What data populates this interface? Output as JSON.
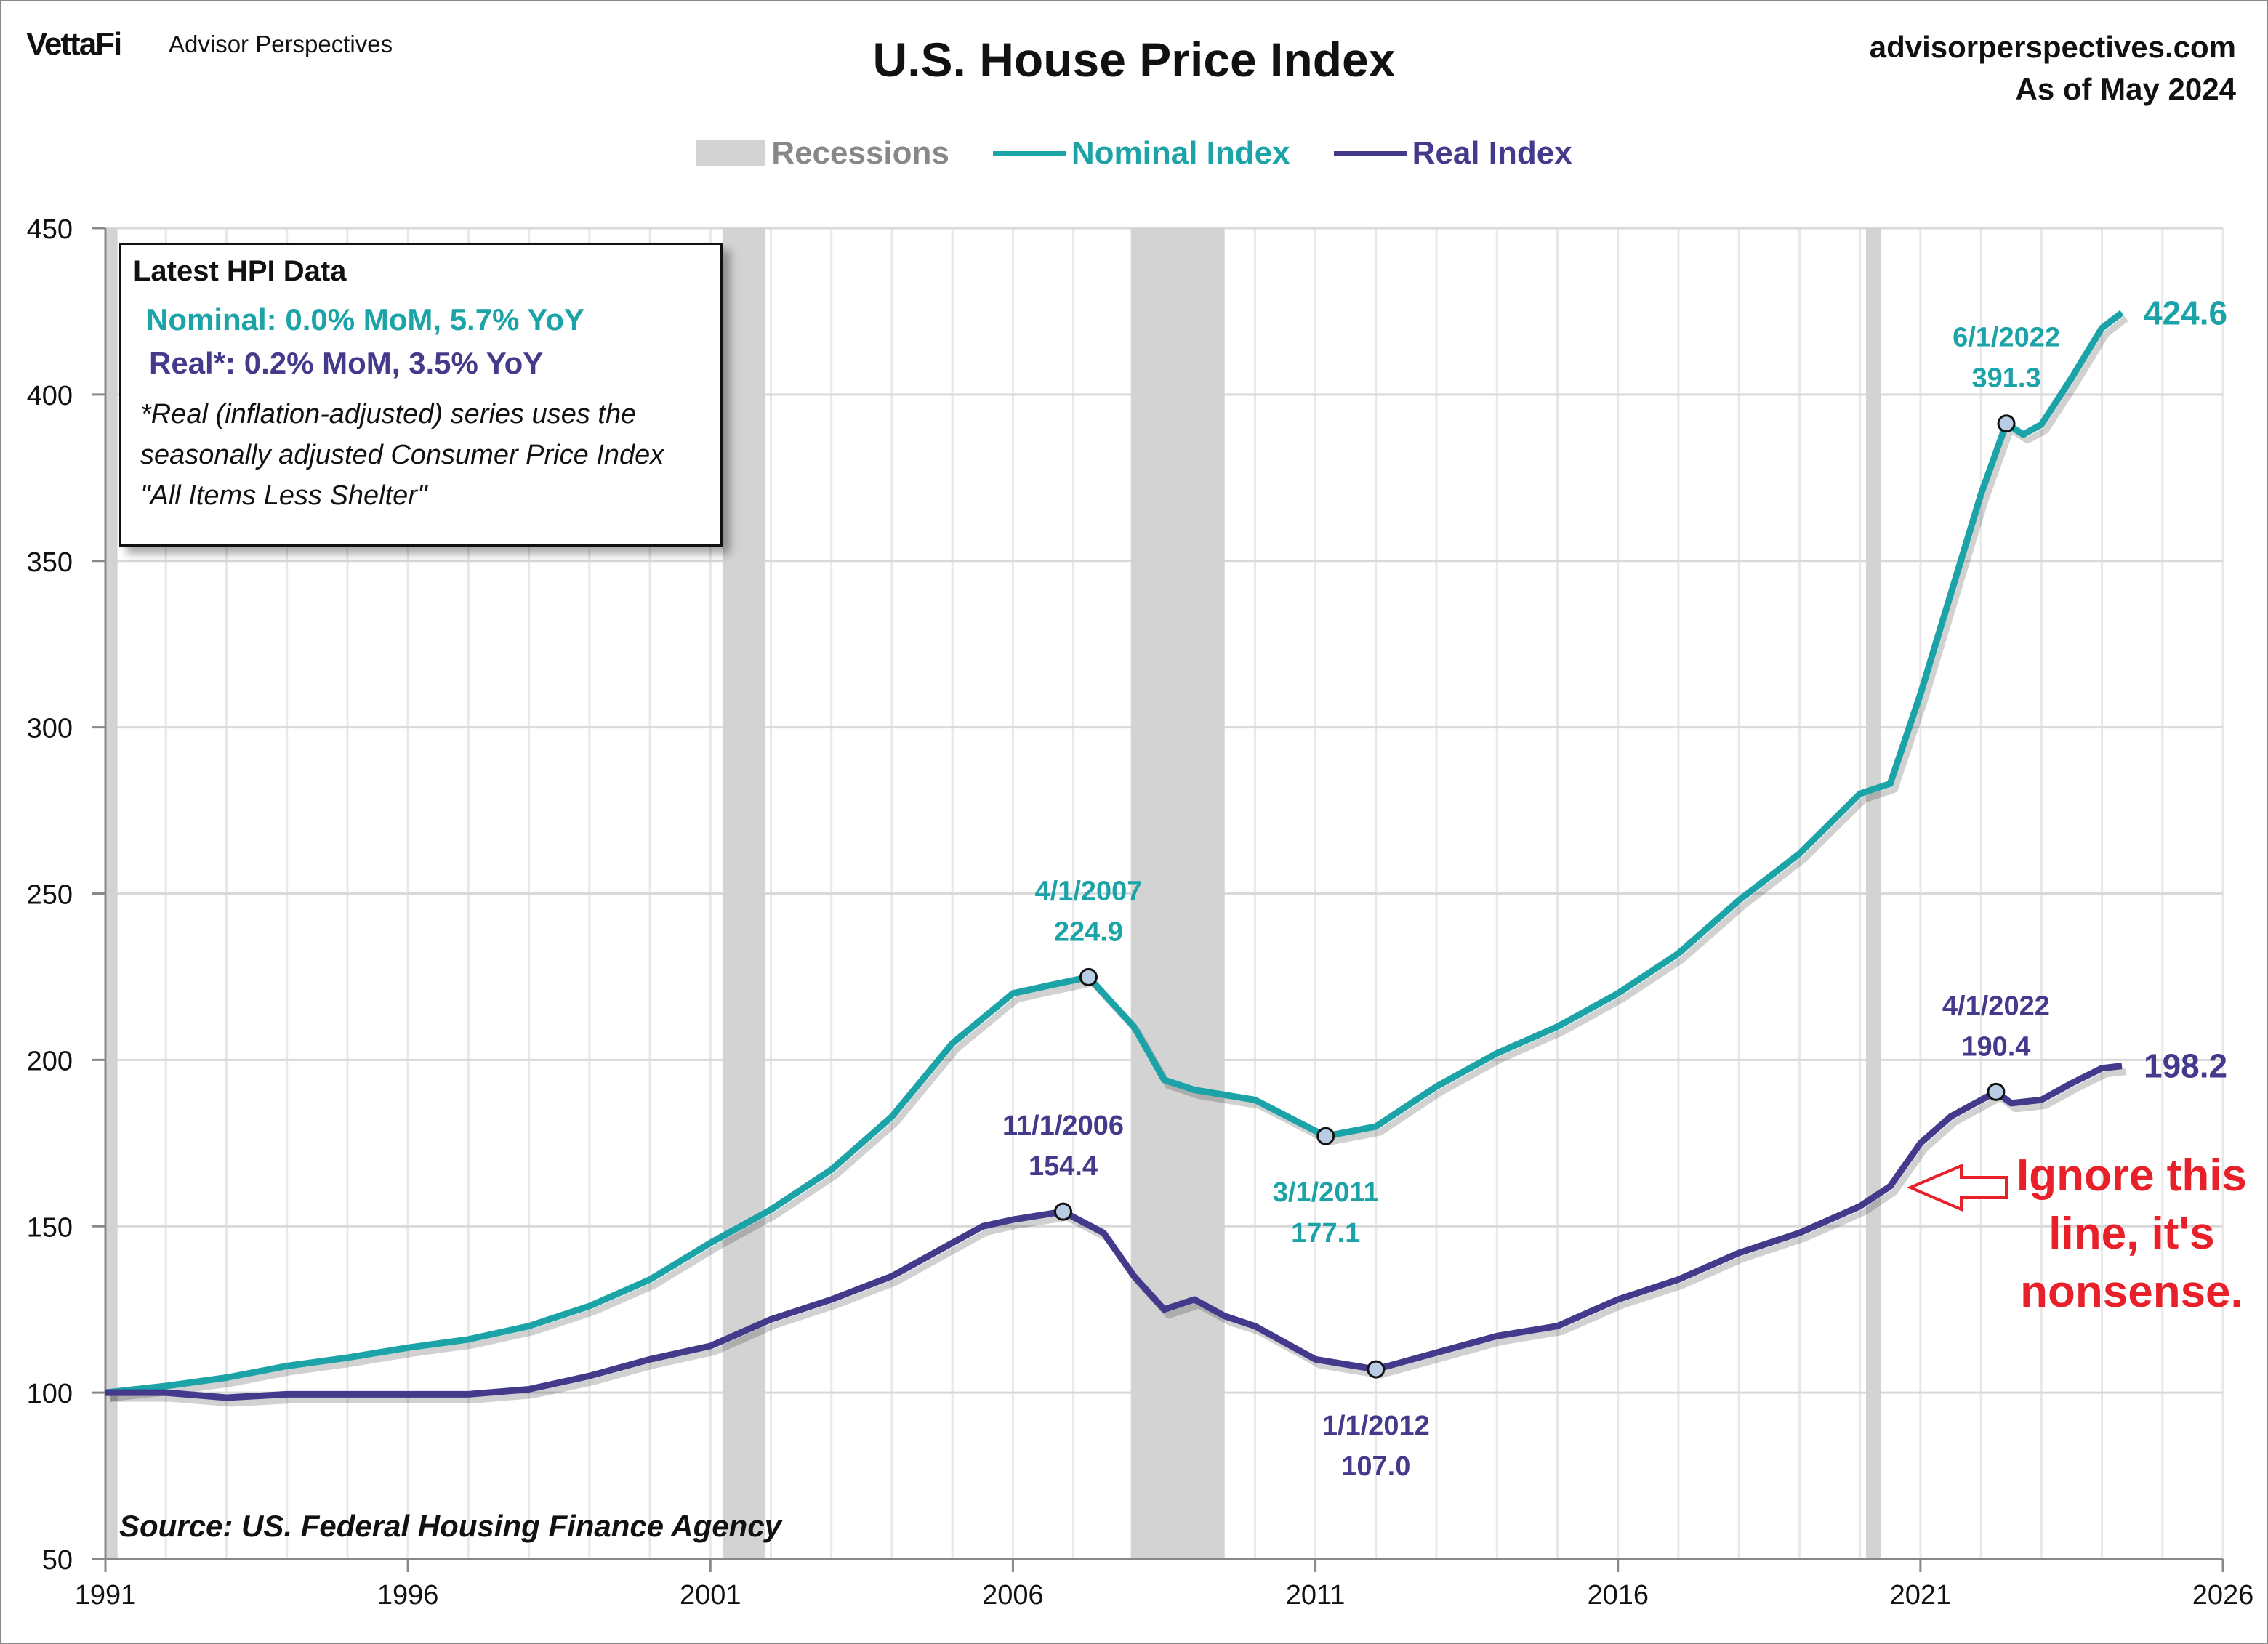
{
  "header": {
    "logo": "VettaFi",
    "brand": "Advisor Perspectives",
    "site": "advisorperspectives.com",
    "as_of": "As of May 2024"
  },
  "infobox": {
    "title": "Latest HPI Data",
    "nominal": "Nominal:  0.0% MoM, 5.7% YoY",
    "real": "Real*:  0.2% MoM, 3.5% YoY",
    "note": "*Real (inflation-adjusted) series uses the seasonally adjusted Consumer Price Index \"All Items Less Shelter\""
  },
  "source": "Source: US. Federal Housing Finance Agency",
  "annotation": {
    "text_line1": "Ignore this",
    "text_line2": "line, it's",
    "text_line3": "nonsense.",
    "color": "#e8202a"
  },
  "chart_data": {
    "type": "line",
    "title": "U.S. House Price Index",
    "xlabel": "",
    "ylabel": "",
    "xlim": [
      1991,
      2026
    ],
    "ylim": [
      50,
      450
    ],
    "xticks": [
      1991,
      1996,
      2001,
      2006,
      2011,
      2016,
      2021,
      2026
    ],
    "yticks": [
      50,
      100,
      150,
      200,
      250,
      300,
      350,
      400,
      450
    ],
    "grid": true,
    "legend": [
      "Recessions",
      "Nominal Index",
      "Real Index"
    ],
    "legend_position": "top-center",
    "recessions": [
      [
        1990.5,
        1991.2
      ],
      [
        2001.2,
        2001.9
      ],
      [
        2007.95,
        2009.5
      ],
      [
        2020.1,
        2020.35
      ]
    ],
    "series": [
      {
        "name": "Nominal Index",
        "color": "#1ba3a8",
        "x": [
          1991,
          1992,
          1993,
          1994,
          1995,
          1996,
          1997,
          1998,
          1999,
          2000,
          2001,
          2002,
          2003,
          2004,
          2005,
          2006,
          2006.5,
          2007.25,
          2008,
          2008.5,
          2009,
          2010,
          2011.17,
          2012,
          2013,
          2014,
          2015,
          2016,
          2017,
          2018,
          2019,
          2020,
          2020.5,
          2021,
          2021.5,
          2022,
          2022.42,
          2022.7,
          2023,
          2023.5,
          2024,
          2024.33
        ],
        "y": [
          100,
          102,
          104.5,
          108,
          110.5,
          113.5,
          116,
          120,
          126,
          134,
          145,
          155,
          167,
          183,
          205,
          220,
          222,
          224.9,
          210,
          194,
          191,
          188,
          177.1,
          180,
          192,
          202,
          210,
          220,
          232,
          248,
          262,
          280,
          283,
          310,
          340,
          370,
          391.3,
          388,
          391,
          405,
          420,
          424.6
        ],
        "last_label": "424.6"
      },
      {
        "name": "Real Index",
        "color": "#443a8c",
        "x": [
          1991,
          1992,
          1993,
          1994,
          1995,
          1996,
          1997,
          1998,
          1999,
          2000,
          2001,
          2002,
          2003,
          2004,
          2005,
          2005.5,
          2006,
          2006.83,
          2007.5,
          2008,
          2008.5,
          2009,
          2009.5,
          2010,
          2011,
          2012,
          2013,
          2014,
          2015,
          2016,
          2017,
          2018,
          2019,
          2020,
          2020.5,
          2021,
          2021.5,
          2022.25,
          2022.5,
          2023,
          2023.5,
          2024,
          2024.33
        ],
        "y": [
          100,
          100,
          98.5,
          99.5,
          99.5,
          99.5,
          99.5,
          101,
          105,
          110,
          114,
          122,
          128,
          135,
          145,
          150,
          152,
          154.4,
          148,
          135,
          125,
          128,
          123,
          120,
          110,
          107,
          112,
          117,
          120,
          128,
          134,
          142,
          148,
          156,
          162,
          175,
          183,
          190.4,
          187,
          188,
          193,
          197.5,
          198.2
        ],
        "last_label": "198.2"
      }
    ],
    "annotations": [
      {
        "series": "Nominal Index",
        "x": 2007.25,
        "y": 224.9,
        "date": "4/1/2007",
        "value": "224.9",
        "pos": "above"
      },
      {
        "series": "Nominal Index",
        "x": 2011.17,
        "y": 177.1,
        "date": "3/1/2011",
        "value": "177.1",
        "pos": "below"
      },
      {
        "series": "Nominal Index",
        "x": 2022.42,
        "y": 391.3,
        "date": "6/1/2022",
        "value": "391.3",
        "pos": "above"
      },
      {
        "series": "Real Index",
        "x": 2006.83,
        "y": 154.4,
        "date": "11/1/2006",
        "value": "154.4",
        "pos": "above"
      },
      {
        "series": "Real Index",
        "x": 2012,
        "y": 107.0,
        "date": "1/1/2012",
        "value": "107.0",
        "pos": "below"
      },
      {
        "series": "Real Index",
        "x": 2022.25,
        "y": 190.4,
        "date": "4/1/2022",
        "value": "190.4",
        "pos": "above"
      }
    ]
  }
}
